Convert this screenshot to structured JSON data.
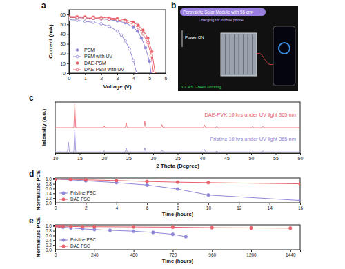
{
  "chart_data": [
    {
      "type": "line",
      "panel_label": "a",
      "x_label": "Voltage (V)",
      "y_label": "Current (mA)",
      "xlim": [
        0,
        6
      ],
      "xticks": [
        0,
        1,
        2,
        3,
        4,
        5,
        6
      ],
      "ylim": [
        0,
        65
      ],
      "yticks": [
        0,
        10,
        20,
        30,
        40,
        50,
        60
      ],
      "legend": "lower left",
      "series": [
        {
          "name": "PSM",
          "color": "#8f87d6",
          "marker": "circle",
          "line_style": "solid",
          "x": [
            0,
            0.5,
            1,
            1.5,
            2,
            2.5,
            3,
            3.5,
            4,
            4.25,
            4.5,
            4.75,
            5,
            5.1
          ],
          "values": [
            57,
            56.8,
            56.5,
            56,
            55.5,
            54.8,
            53.5,
            51.5,
            47,
            43,
            36,
            26,
            12,
            0
          ]
        },
        {
          "name": "PSM with UV",
          "color": "#8f87d6",
          "marker": "circle-open",
          "line_style": "solid",
          "x": [
            0,
            0.5,
            1,
            1.5,
            2,
            2.5,
            3,
            3.25,
            3.5,
            3.75,
            4,
            4.2
          ],
          "values": [
            55,
            54,
            53,
            52,
            50.5,
            48,
            43,
            39,
            33,
            25,
            13,
            0
          ]
        },
        {
          "name": "DAE-PSM",
          "color": "#e8606a",
          "marker": "circle",
          "line_style": "solid",
          "x": [
            0,
            0.5,
            1,
            1.5,
            2,
            2.5,
            3,
            3.5,
            4,
            4.3,
            4.6,
            4.9,
            5.15,
            5.35
          ],
          "values": [
            58,
            57.8,
            57.6,
            57.3,
            57,
            56.5,
            55.8,
            54.5,
            52,
            49,
            44,
            36,
            22,
            0
          ]
        },
        {
          "name": "DAE-PSM with UV",
          "color": "#e8606a",
          "marker": "circle-open",
          "line_style": "solid",
          "x": [
            0,
            0.5,
            1,
            1.5,
            2,
            2.5,
            3,
            3.5,
            4,
            4.3,
            4.6,
            4.9,
            5.1,
            5.25
          ],
          "values": [
            57,
            56.8,
            56.5,
            56.2,
            55.8,
            55.2,
            54.5,
            53,
            50,
            46.5,
            40,
            31,
            18,
            0
          ]
        }
      ]
    },
    {
      "type": "image",
      "panel_label": "b",
      "title": "Perovskite Solar Module with 56 cm²",
      "subtitle": "Charging for mobile phone",
      "annotations": [
        "Power ON",
        "ICCAS Green Printing"
      ]
    },
    {
      "type": "line",
      "panel_label": "c",
      "x_label": "2 Theta (Degree)",
      "y_label": "Intensity (a.u.)",
      "xlim": [
        10,
        60
      ],
      "xticks": [
        10,
        15,
        20,
        25,
        30,
        35,
        40,
        45,
        50,
        55,
        60
      ],
      "ylim": [
        0,
        2.1
      ],
      "tick_labels": "x",
      "legend": "right",
      "series": [
        {
          "name": "DAE-PVK 10 hrs under UV light 365 nm",
          "color": "#e8606a",
          "marker": "none",
          "line_style": "solid",
          "x": [
            10,
            13.8,
            14.0,
            14.2,
            19.8,
            20.0,
            20.2,
            24.3,
            24.5,
            24.7,
            28.1,
            28.3,
            28.5,
            31.6,
            31.8,
            32.0,
            40.3,
            40.5,
            40.7,
            42.8,
            43.0,
            43.2,
            50.1,
            50.3,
            50.5,
            52.2,
            52.4,
            52.6,
            60
          ],
          "values": [
            1.05,
            1.05,
            2.0,
            1.05,
            1.05,
            1.12,
            1.05,
            1.05,
            1.25,
            1.05,
            1.05,
            1.3,
            1.05,
            1.05,
            1.17,
            1.05,
            1.05,
            1.15,
            1.05,
            1.05,
            1.1,
            1.05,
            1.05,
            1.1,
            1.05,
            1.05,
            1.1,
            1.05,
            1.05
          ]
        },
        {
          "name": "Pristine 10 hrs under UV light 365 nm",
          "color": "#8f87d6",
          "marker": "none",
          "line_style": "solid",
          "x": [
            10,
            12.5,
            12.7,
            12.9,
            13.8,
            14.0,
            14.2,
            19.8,
            20.0,
            20.2,
            24.3,
            24.5,
            24.7,
            28.1,
            28.3,
            28.5,
            31.6,
            31.8,
            32.0,
            40.3,
            40.5,
            40.7,
            42.8,
            43.0,
            43.2,
            52.2,
            52.4,
            52.6,
            60
          ],
          "values": [
            0.05,
            0.05,
            0.45,
            0.05,
            0.05,
            0.95,
            0.05,
            0.05,
            0.1,
            0.05,
            0.05,
            0.2,
            0.05,
            0.05,
            0.22,
            0.05,
            0.05,
            0.13,
            0.05,
            0.05,
            0.15,
            0.05,
            0.05,
            0.1,
            0.05,
            0.05,
            0.1,
            0.05,
            0.05
          ]
        }
      ]
    },
    {
      "type": "line",
      "panel_label": "d",
      "x_label": "Time (hours)",
      "y_label": "Normalized PCE",
      "xlim": [
        0,
        16
      ],
      "xticks": [
        0,
        2,
        4,
        6,
        8,
        10,
        12,
        14,
        16
      ],
      "ylim": [
        0,
        1.05
      ],
      "yticks": [
        {
          "value": 0,
          "label": "0.0"
        },
        0.2,
        0.4,
        0.6,
        0.8,
        {
          "value": 1,
          "label": "1.0"
        }
      ],
      "legend": "lower left",
      "series": [
        {
          "name": "Pristine PSC",
          "color": "#8f87d6",
          "marker": "circle",
          "line_style": "solid",
          "x": [
            0,
            1,
            2,
            4,
            6,
            8,
            10,
            16
          ],
          "values": [
            1.0,
            0.97,
            0.93,
            0.85,
            0.75,
            0.58,
            0.33,
            0.1
          ]
        },
        {
          "name": "DAE PSC",
          "color": "#e8606a",
          "marker": "circle",
          "line_style": "solid",
          "x": [
            0,
            1,
            2,
            4,
            6,
            8,
            10,
            16
          ],
          "values": [
            1.0,
            0.99,
            0.97,
            0.94,
            0.9,
            0.87,
            0.85,
            0.8
          ]
        }
      ]
    },
    {
      "type": "line",
      "panel_label": "e",
      "x_label": "Time (hours)",
      "y_label": "Normalized PCE",
      "xlim": [
        0,
        1500
      ],
      "xticks": [
        0,
        240,
        480,
        720,
        960,
        1200,
        1440
      ],
      "ylim": [
        0,
        1.05
      ],
      "yticks": [
        {
          "value": 0,
          "label": "0.0"
        },
        0.2,
        0.4,
        0.6,
        0.8,
        {
          "value": 1,
          "label": "1.0"
        }
      ],
      "legend": "lower left",
      "series": [
        {
          "name": "Pristine PSC",
          "color": "#8f87d6",
          "marker": "circle",
          "line_style": "solid",
          "x": [
            0,
            24,
            48,
            96,
            168,
            240,
            336,
            480,
            600,
            720,
            800
          ],
          "values": [
            1.0,
            0.98,
            0.95,
            0.92,
            0.88,
            0.85,
            0.82,
            0.78,
            0.73,
            0.65,
            0.55
          ]
        },
        {
          "name": "DAE PSC",
          "color": "#e8606a",
          "marker": "circle",
          "line_style": "solid",
          "x": [
            0,
            24,
            48,
            96,
            168,
            240,
            480,
            720,
            960,
            1200,
            1440
          ],
          "values": [
            1.0,
            1.0,
            0.99,
            0.98,
            0.97,
            0.97,
            0.96,
            0.95,
            0.93,
            0.92,
            0.91
          ]
        }
      ]
    }
  ]
}
